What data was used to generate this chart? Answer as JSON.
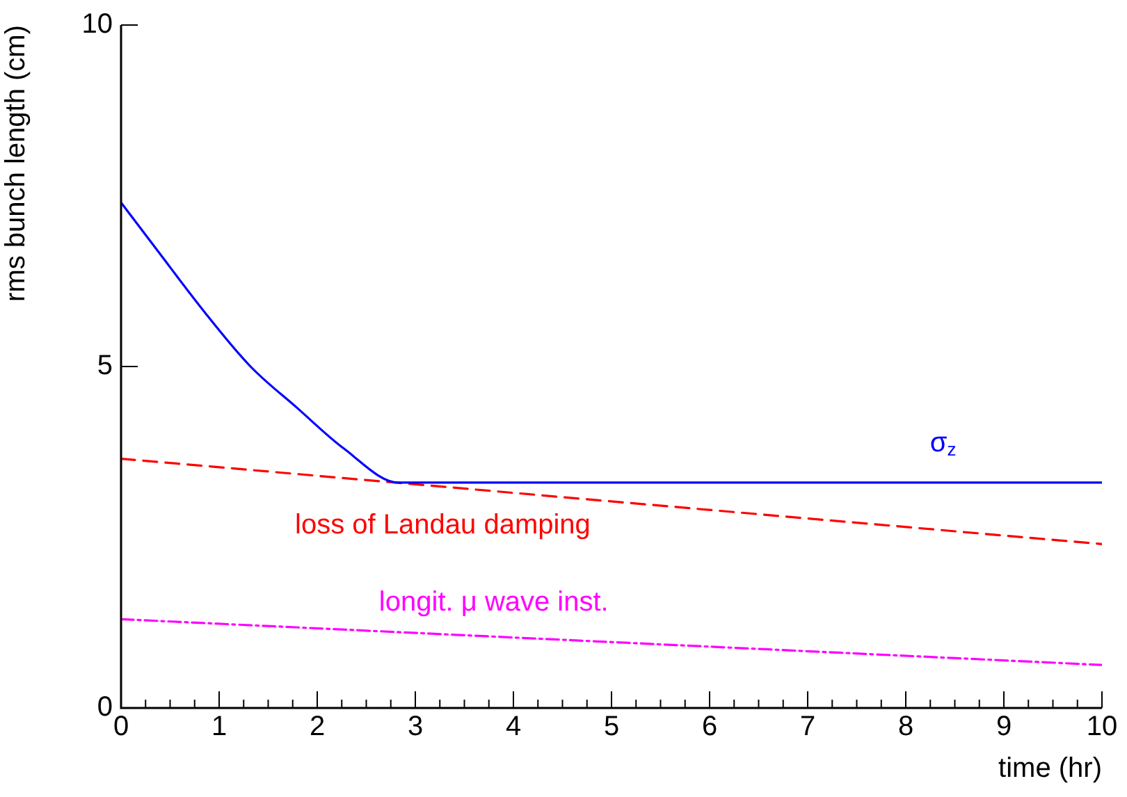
{
  "chart_data": {
    "type": "line",
    "xlabel": "time (hr)",
    "ylabel": "rms bunch length (cm)",
    "xlim": [
      0,
      10
    ],
    "ylim": [
      0,
      10
    ],
    "xticks": [
      0,
      {
        "value": 0.25,
        "label": null
      },
      {
        "value": 0.5,
        "label": null
      },
      {
        "value": 0.75,
        "label": null
      },
      1,
      {
        "value": 1.25,
        "label": null
      },
      {
        "value": 1.5,
        "label": null
      },
      {
        "value": 1.75,
        "label": null
      },
      2,
      {
        "value": 2.25,
        "label": null
      },
      {
        "value": 2.5,
        "label": null
      },
      {
        "value": 2.75,
        "label": null
      },
      3,
      {
        "value": 3.25,
        "label": null
      },
      {
        "value": 3.5,
        "label": null
      },
      {
        "value": 3.75,
        "label": null
      },
      4,
      {
        "value": 4.25,
        "label": null
      },
      {
        "value": 4.5,
        "label": null
      },
      {
        "value": 4.75,
        "label": null
      },
      5,
      {
        "value": 5.25,
        "label": null
      },
      {
        "value": 5.5,
        "label": null
      },
      {
        "value": 5.75,
        "label": null
      },
      6,
      {
        "value": 6.25,
        "label": null
      },
      {
        "value": 6.5,
        "label": null
      },
      {
        "value": 6.75,
        "label": null
      },
      7,
      {
        "value": 7.25,
        "label": null
      },
      {
        "value": 7.5,
        "label": null
      },
      {
        "value": 7.75,
        "label": null
      },
      8,
      {
        "value": 8.25,
        "label": null
      },
      {
        "value": 8.5,
        "label": null
      },
      {
        "value": 8.75,
        "label": null
      },
      9,
      {
        "value": 9.25,
        "label": null
      },
      {
        "value": 9.5,
        "label": null
      },
      {
        "value": 9.75,
        "label": null
      },
      10
    ],
    "yticks": [
      0,
      5,
      10
    ],
    "grid": false,
    "legend": false,
    "marker": "none",
    "series": [
      {
        "name": "σ$_{z}$",
        "color": "#0000ff",
        "line_style": "solid",
        "x": [
          0,
          0.37,
          0.85,
          1.32,
          1.79,
          2.27,
          2.83,
          10
        ],
        "values": [
          7.4,
          6.7,
          5.8,
          5.0,
          4.4,
          3.8,
          3.3,
          3.3
        ]
      },
      {
        "name": "loss of Landau damping",
        "color": "#ff0000",
        "line_style": "dashed",
        "x": [
          0,
          10
        ],
        "values": [
          3.65,
          2.4
        ]
      },
      {
        "name": "longit. μ wave inst.",
        "color": "#ff00ff",
        "line_style": "dashdot",
        "x": [
          0,
          10
        ],
        "values": [
          1.3,
          0.63
        ]
      }
    ]
  }
}
